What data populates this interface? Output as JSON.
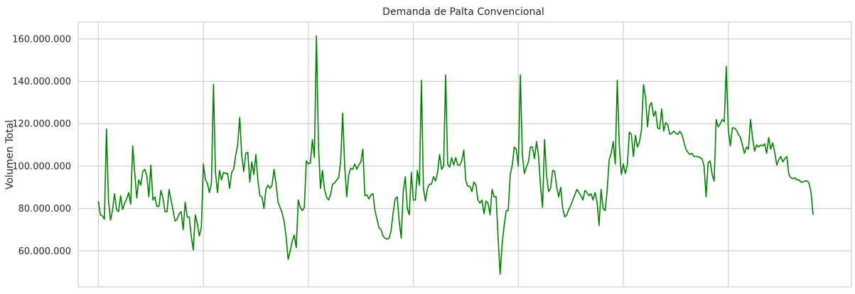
{
  "chart_data": {
    "type": "line",
    "title": "Demanda de Palta Convencional",
    "xlabel": "",
    "ylabel": "Volumen Total",
    "ylim": [
      43000000,
      168000000
    ],
    "yticks": [
      60000000,
      80000000,
      100000000,
      120000000,
      140000000,
      160000000
    ],
    "ytick_labels": [
      "60.000.000",
      "80.000.000",
      "100.000.000",
      "120.000.000",
      "140.000.000",
      "160.000.000"
    ],
    "xticks_count": 7,
    "xlim": [
      -10,
      373
    ],
    "grid": true,
    "legend": "none",
    "color": "#008000",
    "series": [
      {
        "values": [
          83.5,
          77,
          76.5,
          75,
          117.5,
          84,
          74.5,
          79,
          87,
          79.5,
          78.5,
          86,
          79.5,
          82.5,
          84.5,
          87.5,
          82,
          109.5,
          97,
          85,
          93.5,
          91,
          97.5,
          98.5,
          95.5,
          85.5,
          100.5,
          84,
          85.5,
          81,
          81,
          88.5,
          85,
          78.5,
          78.5,
          89,
          84,
          79,
          74,
          75,
          77.5,
          78.5,
          70,
          83,
          76,
          76,
          67,
          60.5,
          77,
          73,
          67,
          71,
          101,
          93.5,
          92,
          87.5,
          92,
          138.5,
          97,
          87.5,
          98,
          93.5,
          97,
          96.5,
          96.5,
          89.5,
          97,
          98.5,
          105,
          110,
          123,
          105,
          97.5,
          106,
          106.5,
          92.5,
          102,
          96,
          105.5,
          93.5,
          86,
          85.5,
          80,
          89,
          91,
          89.5,
          91,
          98.5,
          91.5,
          83,
          80.5,
          78,
          74,
          66.5,
          56,
          60,
          64.5,
          67.5,
          61.5,
          84,
          80.5,
          79,
          80.5,
          102.5,
          101,
          101.5,
          112.5,
          104,
          161.5,
          110,
          89.5,
          98,
          89,
          85.5,
          84,
          86.5,
          91.5,
          92,
          93.5,
          94.5,
          102,
          125,
          100,
          85.5,
          96,
          99,
          98.5,
          101,
          98.5,
          100.5,
          102,
          108,
          86,
          86.5,
          84.5,
          86.5,
          87,
          79,
          75,
          71,
          70,
          67,
          66,
          65.5,
          66,
          69.5,
          78,
          84.5,
          85.5,
          74,
          66,
          88,
          95,
          80,
          77,
          97,
          84,
          84,
          98,
          91,
          140.5,
          89.5,
          83.5,
          89.5,
          91.5,
          91.5,
          95,
          93,
          97,
          105.5,
          98.5,
          100,
          143,
          101,
          99.5,
          104,
          100.5,
          104,
          100.5,
          100.5,
          102.5,
          107.5,
          93,
          90.5,
          90.5,
          88,
          92.5,
          91,
          84,
          82.5,
          84,
          77.5,
          83.5,
          82.5,
          77,
          89,
          85.5,
          85.5,
          66,
          49,
          63.5,
          72,
          79,
          79,
          96,
          100.5,
          109,
          108,
          100,
          143,
          105.5,
          96.5,
          99.5,
          102,
          109,
          109,
          103.5,
          111.5,
          105,
          90.5,
          80.5,
          112.5,
          95.5,
          88,
          89.5,
          98,
          97.5,
          90,
          85.5,
          90,
          80,
          76,
          77,
          79.5,
          81.5,
          84,
          86.5,
          89,
          87.5,
          86,
          84,
          88.5,
          87.5,
          86,
          87,
          84,
          87.5,
          83,
          72,
          89,
          80,
          79,
          88.5,
          103,
          106,
          111.5,
          101,
          140.5,
          110,
          96,
          101,
          96.5,
          100.5,
          116,
          115,
          104.5,
          114.5,
          109,
          111.5,
          117,
          138.5,
          132.5,
          118.5,
          128.5,
          130,
          123.5,
          126,
          118,
          117.5,
          127,
          116.5,
          120.5,
          119.5,
          115,
          115.5,
          116.5,
          115.5,
          115,
          116.5,
          115,
          111.5,
          108,
          106.5,
          105.5,
          106,
          104.5,
          104.5,
          104.5,
          104,
          103.5,
          100,
          85.5,
          101.5,
          102.5,
          96,
          93,
          122,
          118.5,
          120,
          122,
          121,
          147,
          117.5,
          109.5,
          118,
          118,
          117,
          115,
          113.5,
          110,
          106,
          109,
          108,
          122,
          113.5,
          107,
          110,
          109,
          110,
          109.5,
          110.5,
          106,
          113.5,
          108,
          111,
          106.5,
          100.5,
          103,
          104.5,
          102,
          103.5,
          104.5,
          96,
          94.5,
          94,
          94.5,
          93.5,
          93.5,
          92.5,
          92.5,
          93,
          93,
          92,
          87.5,
          77
        ]
      }
    ]
  }
}
